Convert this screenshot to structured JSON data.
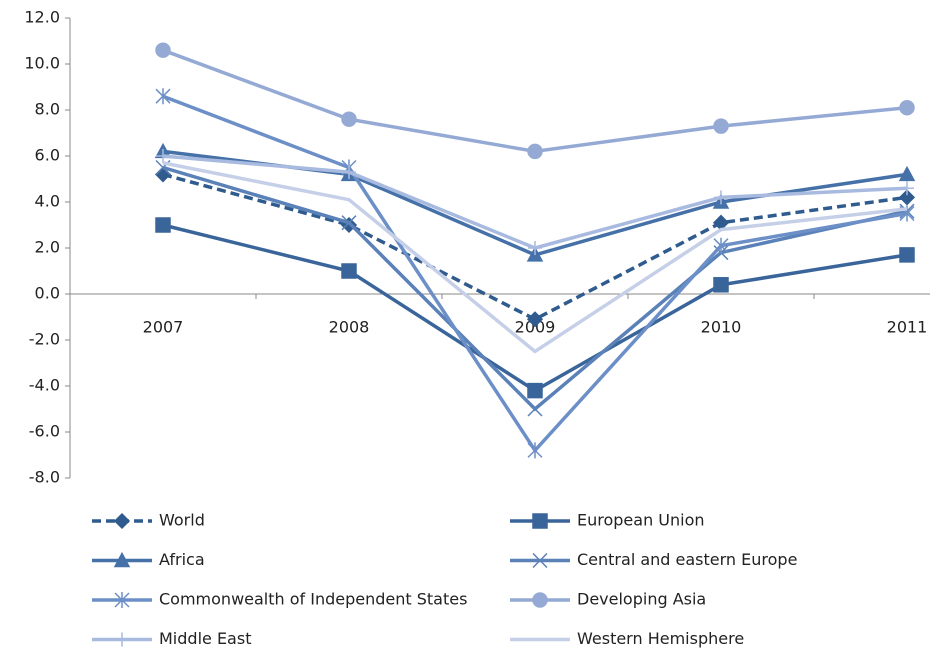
{
  "chart_data": {
    "type": "line",
    "categories": [
      "2007",
      "2008",
      "2009",
      "2010",
      "2011"
    ],
    "ylim": [
      -8,
      12
    ],
    "yticks": [
      {
        "value": -8,
        "label": "-8.0"
      },
      {
        "value": -6,
        "label": "-6.0"
      },
      {
        "value": -4,
        "label": "-4.0"
      },
      {
        "value": -2,
        "label": "-2.0"
      },
      {
        "value": 0,
        "label": "0.0"
      },
      {
        "value": 2,
        "label": "2.0"
      },
      {
        "value": 4,
        "label": "4.0"
      },
      {
        "value": 6,
        "label": "6.0"
      },
      {
        "value": 8,
        "label": "8.0"
      },
      {
        "value": 10,
        "label": "10.0"
      },
      {
        "value": 12,
        "label": "12.0"
      }
    ],
    "grid": false,
    "series": [
      {
        "name": "World",
        "color": "#2f5b8e",
        "marker": "diamond",
        "dashed": true,
        "values": [
          5.2,
          3.0,
          -1.1,
          3.1,
          4.2
        ]
      },
      {
        "name": "European Union",
        "color": "#3a659a",
        "marker": "square",
        "values": [
          3.0,
          1.0,
          -4.2,
          0.4,
          1.7
        ]
      },
      {
        "name": "Africa",
        "color": "#4571a8",
        "marker": "triangle",
        "values": [
          6.2,
          5.2,
          1.7,
          4.0,
          5.2
        ]
      },
      {
        "name": "Central and eastern Europe",
        "color": "#5a81b8",
        "marker": "x",
        "values": [
          5.5,
          3.1,
          -5.0,
          1.8,
          3.6
        ]
      },
      {
        "name": "Commonwealth of Independent States",
        "color": "#6b8fc6",
        "marker": "star",
        "values": [
          8.6,
          5.5,
          -6.8,
          2.1,
          3.5
        ]
      },
      {
        "name": "Developing Asia",
        "color": "#94aad4",
        "marker": "circle",
        "values": [
          10.6,
          7.6,
          6.2,
          7.3,
          8.1
        ]
      },
      {
        "name": "Middle East",
        "color": "#a8badf",
        "marker": "plus",
        "values": [
          6.0,
          5.3,
          2.0,
          4.2,
          4.6
        ]
      },
      {
        "name": "Western Hemisphere",
        "color": "#c5cfe7",
        "marker": "none",
        "values": [
          5.7,
          4.1,
          -2.5,
          2.8,
          3.7
        ]
      }
    ]
  }
}
